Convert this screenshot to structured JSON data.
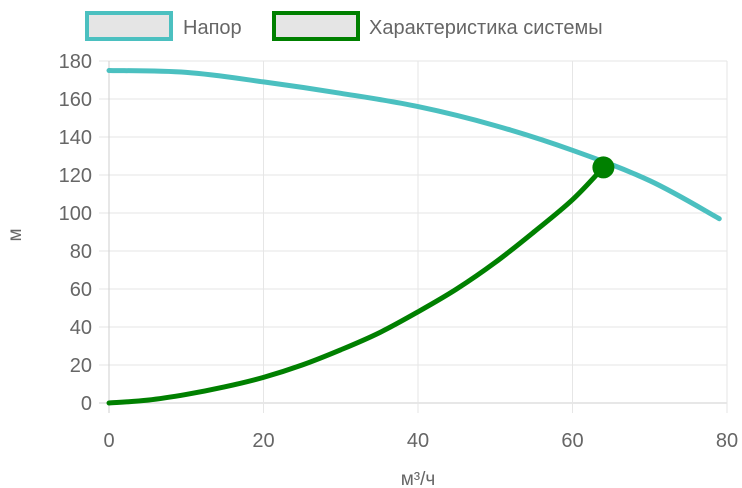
{
  "chart_data": {
    "type": "line",
    "title": "",
    "xlabel": "м³/ч",
    "ylabel": "м",
    "xlim": [
      0,
      80
    ],
    "ylim": [
      0,
      180
    ],
    "x_ticks": [
      0,
      20,
      40,
      60,
      80
    ],
    "y_ticks": [
      0,
      20,
      40,
      60,
      80,
      100,
      120,
      140,
      160,
      180
    ],
    "grid": true,
    "legend_position": "top",
    "series": [
      {
        "name": "Напор",
        "color": "#4bc0c0",
        "x": [
          0,
          10,
          20,
          30,
          40,
          50,
          60,
          70,
          79
        ],
        "y": [
          175,
          174,
          169,
          163,
          156,
          146,
          133,
          117,
          97
        ]
      },
      {
        "name": "Характеристика системы",
        "color": "#008000",
        "x": [
          0,
          5,
          10,
          15,
          20,
          25,
          30,
          35,
          40,
          45,
          50,
          55,
          60,
          64
        ],
        "y": [
          0,
          1.5,
          4.5,
          8.5,
          13.5,
          20,
          28,
          37,
          48,
          60,
          74,
          90,
          107,
          124
        ]
      }
    ],
    "operating_point": {
      "x": 64,
      "y": 124,
      "color": "#008000"
    }
  }
}
